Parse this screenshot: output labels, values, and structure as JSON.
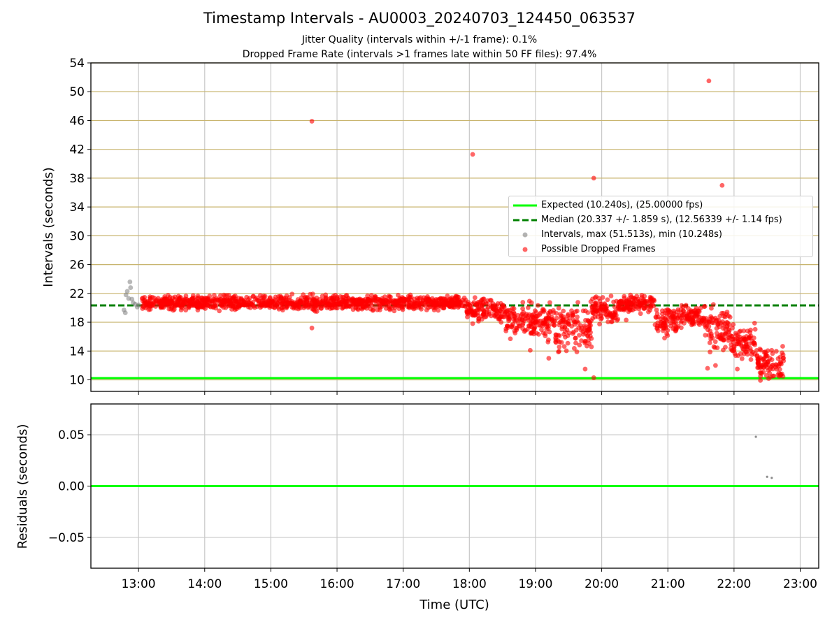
{
  "title": "Timestamp Intervals - AU0003_20240703_124450_063537",
  "subtitle_jitter": "Jitter Quality (intervals within +/-1 frame): 0.1%",
  "subtitle_dropped": "Dropped Frame Rate (intervals >1 frames late within 50 FF files): 97.4%",
  "colors": {
    "expected": "#00ff00",
    "median": "#008000",
    "intervals": "#808080",
    "dropped": "#ff0000",
    "major_grid": "#c8b46e",
    "grid": "#c8c8c8"
  },
  "chart_data": [
    {
      "type": "scatter",
      "xlabel": "",
      "ylabel": "Intervals (seconds)",
      "x_unit": "hours UTC",
      "xlim": [
        12.28,
        23.28
      ],
      "ylim": [
        8.4,
        54
      ],
      "yticks": [
        10,
        14,
        18,
        22,
        26,
        30,
        34,
        38,
        42,
        46,
        50,
        54
      ],
      "grid": true,
      "legend_position": "center-right",
      "lines": [
        {
          "name": "Expected (10.240s), (25.00000 fps)",
          "style": "solid",
          "color": "#00ff00",
          "y": 10.24
        },
        {
          "name": "Median (20.337 +/- 1.859 s), (12.56339 +/- 1.14 fps)",
          "style": "dashed",
          "color": "#008000",
          "y": 20.337
        }
      ],
      "series": [
        {
          "name": "Intervals, max (51.513s), min (10.248s)",
          "color": "#808080",
          "points": [
            [
              12.78,
              19.7
            ],
            [
              12.8,
              19.3
            ],
            [
              12.81,
              21.8
            ],
            [
              12.83,
              22.3
            ],
            [
              12.85,
              21.3
            ],
            [
              12.87,
              23.6
            ],
            [
              12.88,
              22.8
            ],
            [
              12.9,
              21.2
            ],
            [
              12.92,
              20.7
            ],
            [
              12.95,
              20.5
            ],
            [
              12.98,
              20.1
            ],
            [
              13.0,
              20.4
            ]
          ]
        },
        {
          "name": "Possible Dropped Frames",
          "color": "#ff0000",
          "points": [
            [
              15.62,
              45.9
            ],
            [
              18.05,
              41.3
            ],
            [
              19.88,
              38.0
            ],
            [
              21.62,
              51.5
            ],
            [
              21.82,
              37.0
            ],
            [
              15.62,
              17.2
            ],
            [
              18.05,
              17.8
            ],
            [
              18.62,
              15.7
            ],
            [
              18.92,
              14.1
            ],
            [
              19.2,
              13.0
            ],
            [
              19.75,
              11.5
            ],
            [
              19.88,
              10.3
            ],
            [
              20.37,
              18.3
            ],
            [
              20.95,
              15.8
            ],
            [
              21.6,
              11.6
            ],
            [
              21.72,
              12.0
            ],
            [
              22.05,
              11.5
            ],
            [
              22.4,
              10.5
            ],
            [
              22.55,
              10.4
            ],
            [
              22.7,
              10.8
            ],
            [
              19.9,
              21.4
            ],
            [
              20.55,
              21.2
            ]
          ],
          "bands": [
            {
              "x": [
                13.05,
                17.95
              ],
              "center": 20.7,
              "spread": 1.4
            },
            {
              "x": [
                17.95,
                18.55
              ],
              "center": 19.7,
              "spread": 2.4
            },
            {
              "x": [
                18.55,
                19.3
              ],
              "center": 18.2,
              "spread": 3.4
            },
            {
              "x": [
                19.3,
                19.85
              ],
              "center": 17.2,
              "spread": 4.5
            },
            {
              "x": [
                19.85,
                20.25
              ],
              "center": 19.6,
              "spread": 2.6
            },
            {
              "x": [
                20.25,
                20.8
              ],
              "center": 20.6,
              "spread": 1.6
            },
            {
              "x": [
                20.8,
                21.15
              ],
              "center": 18.3,
              "spread": 2.8
            },
            {
              "x": [
                21.15,
                21.55
              ],
              "center": 18.8,
              "spread": 2.2
            },
            {
              "x": [
                21.55,
                21.95
              ],
              "center": 17.0,
              "spread": 4.0
            },
            {
              "x": [
                21.95,
                22.35
              ],
              "center": 15.0,
              "spread": 3.5
            },
            {
              "x": [
                22.35,
                22.75
              ],
              "center": 12.3,
              "spread": 3.0
            }
          ]
        }
      ]
    },
    {
      "type": "scatter",
      "xlabel": "Time (UTC)",
      "ylabel": "Residuals (seconds)",
      "x_unit": "hours UTC",
      "xlim": [
        12.28,
        23.28
      ],
      "ylim": [
        -0.08,
        0.08
      ],
      "yticks": [
        -0.05,
        0.0,
        0.05
      ],
      "ytick_labels": [
        "−0.05",
        "0.00",
        "0.05"
      ],
      "grid": true,
      "lines": [
        {
          "style": "solid",
          "color": "#00ff00",
          "y": 0.0
        }
      ],
      "series": [
        {
          "color": "#808080",
          "points": [
            [
              22.33,
              0.048
            ],
            [
              22.5,
              0.009
            ],
            [
              22.57,
              0.008
            ]
          ]
        }
      ]
    }
  ],
  "x_ticks": [
    {
      "value": 13,
      "label": "13:00"
    },
    {
      "value": 14,
      "label": "14:00"
    },
    {
      "value": 15,
      "label": "15:00"
    },
    {
      "value": 16,
      "label": "16:00"
    },
    {
      "value": 17,
      "label": "17:00"
    },
    {
      "value": 18,
      "label": "18:00"
    },
    {
      "value": 19,
      "label": "19:00"
    },
    {
      "value": 20,
      "label": "20:00"
    },
    {
      "value": 21,
      "label": "21:00"
    },
    {
      "value": 22,
      "label": "22:00"
    },
    {
      "value": 23,
      "label": "23:00"
    }
  ]
}
